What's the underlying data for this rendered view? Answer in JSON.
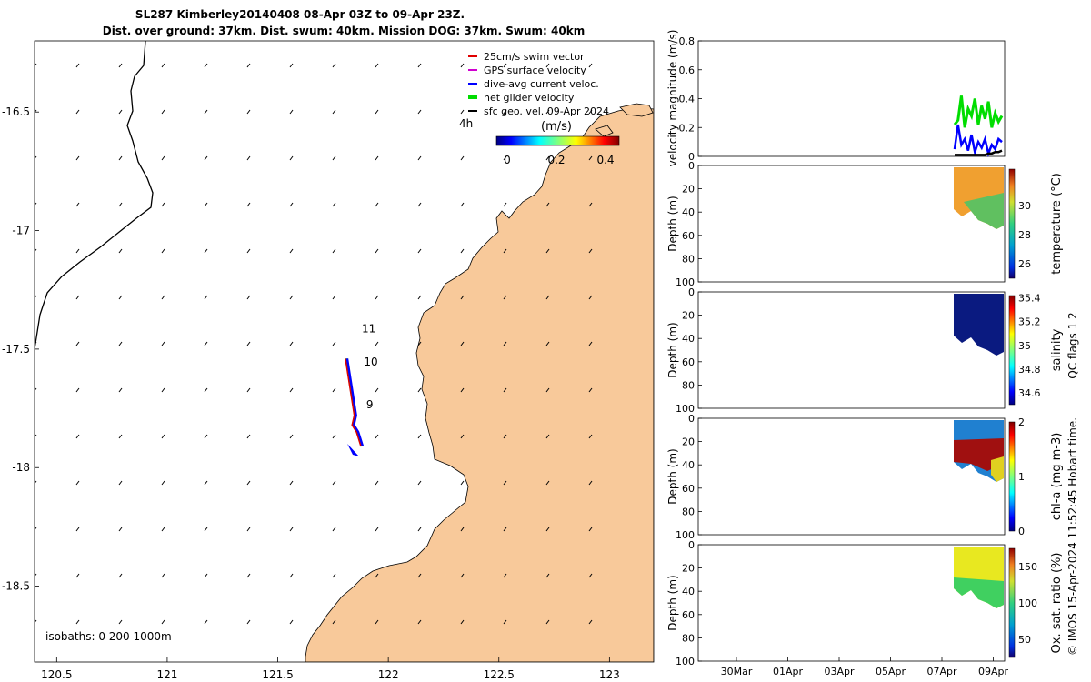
{
  "title": {
    "line1": "SL287 Kimberley20140408 08-Apr 03Z to 09-Apr 23Z.",
    "line2": "Dist. over ground: 37km. Dist. swum: 40km. Mission DOG: 37km. Swum: 40km"
  },
  "map": {
    "x_ticks": [
      "120.5",
      "121",
      "121.5",
      "122",
      "122.5",
      "123"
    ],
    "y_ticks": [
      "-16.5",
      "-17",
      "-17.5",
      "-18",
      "-18.5"
    ],
    "xlim": [
      120.4,
      123.2
    ],
    "ylim": [
      -18.82,
      -16.2
    ],
    "legend": [
      {
        "label": "25cm/s swim vector",
        "color": "#e00000"
      },
      {
        "label": "GPS surface velocity",
        "color": "#d000d0"
      },
      {
        "label": "dive-avg current veloc.",
        "color": "#0000ff"
      },
      {
        "label": "net glider velocity",
        "color": "#00dd00"
      },
      {
        "label": "sfc geo. vel. 09-Apr 2024",
        "color": "#000000"
      }
    ],
    "legend_extra": "4h",
    "colorbar": {
      "label": "(m/s)",
      "ticks": [
        "0",
        "0.2",
        "0.4"
      ]
    },
    "hour_labels": [
      {
        "text": "11",
        "lon": 121.88,
        "lat": -17.43
      },
      {
        "text": "10",
        "lon": 121.89,
        "lat": -17.57
      },
      {
        "text": "9",
        "lon": 121.9,
        "lat": -17.75
      }
    ],
    "isobaths_label": "isobaths: 0   200  1000m",
    "land_color": "#f8c99a"
  },
  "velocity_panel": {
    "ylabel": "velocity magnitude (m/s)",
    "y_ticks": [
      "0",
      "0.2",
      "0.4",
      "0.6",
      "0.8"
    ],
    "ylim": [
      0,
      0.8
    ],
    "series": [
      {
        "color": "#00dd00",
        "values": [
          0.22,
          0.25,
          0.42,
          0.2,
          0.33,
          0.28,
          0.4,
          0.22,
          0.35,
          0.26,
          0.38,
          0.2,
          0.3,
          0.24,
          0.28
        ]
      },
      {
        "color": "#0000ff",
        "values": [
          0.05,
          0.22,
          0.08,
          0.12,
          0.04,
          0.15,
          0.03,
          0.1,
          0.06,
          0.12,
          0.02,
          0.08,
          0.05,
          0.12,
          0.1
        ]
      },
      {
        "color": "#000000",
        "values": [
          0.01,
          0.01,
          0.01,
          0.01,
          0.01,
          0.01,
          0.01,
          0.01,
          0.01,
          0.01,
          0.02,
          0.02,
          0.03,
          0.03,
          0.04
        ]
      }
    ]
  },
  "profile_panels": [
    {
      "ylabel": "Depth (m)",
      "y_ticks": [
        "0",
        "20",
        "40",
        "60",
        "80",
        "100"
      ],
      "cb_label": "temperature (°C)",
      "cb_ticks": [
        "26",
        "28",
        "30"
      ],
      "cb_range": [
        25,
        32.5
      ]
    },
    {
      "ylabel": "Depth (m)",
      "y_ticks": [
        "0",
        "20",
        "40",
        "60",
        "80",
        "100"
      ],
      "cb_label": "salinity",
      "cb_ticks": [
        "34.6",
        "34.8",
        "35",
        "35.2",
        "35.4"
      ],
      "cb_range": [
        34.5,
        35.42
      ]
    },
    {
      "ylabel": "Depth (m)",
      "y_ticks": [
        "0",
        "20",
        "40",
        "60",
        "80",
        "100"
      ],
      "cb_label": "chl-a (mg m-3)",
      "cb_ticks": [
        "0",
        "1",
        "2"
      ],
      "cb_range": [
        0,
        2
      ]
    },
    {
      "ylabel": "Depth (m)",
      "y_ticks": [
        "0",
        "20",
        "40",
        "60",
        "80",
        "100"
      ],
      "cb_label": "Ox. sat. ratio (%)",
      "cb_ticks": [
        "50",
        "100",
        "150"
      ],
      "cb_range": [
        25,
        175
      ]
    }
  ],
  "time_axis": {
    "ticks": [
      "30Mar",
      "01Apr",
      "03Apr",
      "05Apr",
      "07Apr",
      "09Apr"
    ]
  },
  "side_note_qc": "QC flags 1  2",
  "side_note_imos": "© IMOS 15-Apr-2024 11:52:45 Hobart time.",
  "chart_data": [
    {
      "type": "scatter",
      "title": "SL287 Kimberley20140408 08-Apr 03Z to 09-Apr 23Z.",
      "x_ticks": [
        "120.5",
        "121",
        "121.5",
        "122",
        "122.5",
        "123"
      ],
      "y_ticks": [
        "-16.5",
        "-17",
        "-17.5",
        "-18",
        "-18.5"
      ],
      "xlim": [
        120.4,
        123.2
      ],
      "ylim": [
        -18.82,
        -16.2
      ],
      "series": [
        {
          "name": "net glider velocity",
          "x": [
            121.81,
            121.82,
            121.83,
            121.84,
            121.85,
            121.84,
            121.86,
            121.87,
            121.88
          ],
          "y": [
            -17.54,
            -17.6,
            -17.66,
            -17.72,
            -17.78,
            -17.82,
            -17.85,
            -17.88,
            -17.91
          ]
        }
      ]
    },
    {
      "type": "line",
      "ylabel": "velocity magnitude (m/s)",
      "ylim": [
        0,
        0.8
      ]
    }
  ]
}
